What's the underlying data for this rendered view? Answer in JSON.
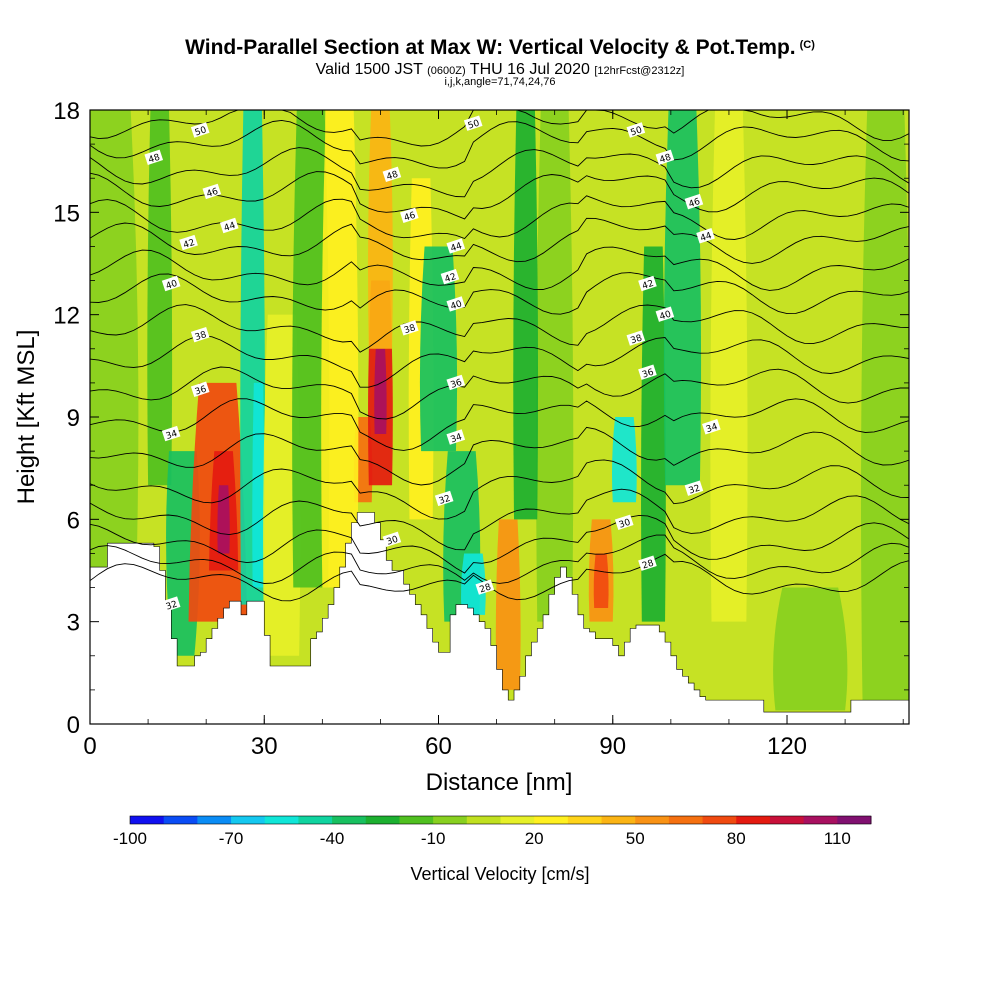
{
  "title": "Wind-Parallel Section at Max W: Vertical Velocity & Pot.Temp.",
  "copyright": "(C)",
  "subtitle_main": "Valid 1500 JST",
  "subtitle_utc": "(0600Z)",
  "subtitle_date": "THU 16 Jul 2020",
  "subtitle_fcst": "[12hrFcst@2312z]",
  "subtitle_idx": "i,j,k,angle=71,74,24,76",
  "chart_data": {
    "type": "heatmap",
    "xlabel": "Distance [nm]",
    "ylabel": "Height [Kft MSL]",
    "xlim": [
      0,
      141
    ],
    "ylim": [
      0,
      18
    ],
    "xticks": [
      "0",
      "30",
      "60",
      "90",
      "120"
    ],
    "yticks": [
      "0",
      "3",
      "6",
      "9",
      "12",
      "15",
      "18"
    ],
    "colorbar": {
      "label": "Vertical Velocity [cm/s]",
      "ticks": [
        "-100",
        "-70",
        "-40",
        "-10",
        "20",
        "50",
        "80",
        "110"
      ],
      "levels": [
        -100,
        -90,
        -80,
        -70,
        -60,
        -50,
        -40,
        -30,
        -20,
        -10,
        0,
        10,
        20,
        30,
        40,
        50,
        60,
        70,
        80,
        90,
        100,
        110,
        120
      ],
      "colors": [
        "#1010f0",
        "#0a4cf5",
        "#0a8cf5",
        "#14c8f0",
        "#10e6d8",
        "#10d4a0",
        "#18c060",
        "#1cb030",
        "#50c020",
        "#88d020",
        "#c0e020",
        "#e6f028",
        "#fff020",
        "#ffd41a",
        "#fbb414",
        "#f99214",
        "#f57010",
        "#f04a10",
        "#e41a10",
        "#c8103a",
        "#a81060",
        "#801070"
      ]
    },
    "contour_field": "Pot.Temp.",
    "contour_labels": [
      {
        "x": 14,
        "y": 3.5,
        "label": "32"
      },
      {
        "x": 14,
        "y": 8.5,
        "label": "34"
      },
      {
        "x": 19,
        "y": 9.8,
        "label": "36"
      },
      {
        "x": 19,
        "y": 11.4,
        "label": "38"
      },
      {
        "x": 14,
        "y": 12.9,
        "label": "40"
      },
      {
        "x": 17,
        "y": 14.1,
        "label": "42"
      },
      {
        "x": 24,
        "y": 14.6,
        "label": "44"
      },
      {
        "x": 21,
        "y": 15.6,
        "label": "46"
      },
      {
        "x": 11,
        "y": 16.6,
        "label": "48"
      },
      {
        "x": 19,
        "y": 17.4,
        "label": "50"
      },
      {
        "x": 52,
        "y": 16.1,
        "label": "48"
      },
      {
        "x": 55,
        "y": 14.9,
        "label": "46"
      },
      {
        "x": 63,
        "y": 14.0,
        "label": "44"
      },
      {
        "x": 62,
        "y": 13.1,
        "label": "42"
      },
      {
        "x": 63,
        "y": 12.3,
        "label": "40"
      },
      {
        "x": 55,
        "y": 11.6,
        "label": "38"
      },
      {
        "x": 63,
        "y": 10.0,
        "label": "36"
      },
      {
        "x": 63,
        "y": 8.4,
        "label": "34"
      },
      {
        "x": 61,
        "y": 6.6,
        "label": "32"
      },
      {
        "x": 52,
        "y": 5.4,
        "label": "30"
      },
      {
        "x": 68,
        "y": 4.0,
        "label": "28"
      },
      {
        "x": 66,
        "y": 17.6,
        "label": "50"
      },
      {
        "x": 94,
        "y": 17.4,
        "label": "50"
      },
      {
        "x": 99,
        "y": 16.6,
        "label": "48"
      },
      {
        "x": 104,
        "y": 15.3,
        "label": "46"
      },
      {
        "x": 106,
        "y": 14.3,
        "label": "44"
      },
      {
        "x": 96,
        "y": 12.9,
        "label": "42"
      },
      {
        "x": 99,
        "y": 12.0,
        "label": "40"
      },
      {
        "x": 94,
        "y": 11.3,
        "label": "38"
      },
      {
        "x": 96,
        "y": 10.3,
        "label": "36"
      },
      {
        "x": 107,
        "y": 8.7,
        "label": "34"
      },
      {
        "x": 104,
        "y": 6.9,
        "label": "32"
      },
      {
        "x": 92,
        "y": 5.9,
        "label": "30"
      },
      {
        "x": 96,
        "y": 4.7,
        "label": "28"
      }
    ],
    "terrain_height": [
      [
        0,
        4.6
      ],
      [
        2,
        4.6
      ],
      [
        3,
        5.3
      ],
      [
        6,
        5.3
      ],
      [
        7,
        5.3
      ],
      [
        8,
        5.3
      ],
      [
        9,
        5.3
      ],
      [
        10,
        5.3
      ],
      [
        11,
        5.2
      ],
      [
        12,
        4.5
      ],
      [
        13,
        3.5
      ],
      [
        14,
        2.5
      ],
      [
        15,
        1.7
      ],
      [
        17,
        1.7
      ],
      [
        18,
        2.0
      ],
      [
        19,
        2.1
      ],
      [
        20,
        2.5
      ],
      [
        21,
        2.8
      ],
      [
        22,
        3.1
      ],
      [
        23,
        3.4
      ],
      [
        24,
        3.6
      ],
      [
        26,
        3.2
      ],
      [
        27,
        3.6
      ],
      [
        29,
        3.6
      ],
      [
        30,
        2.6
      ],
      [
        31,
        1.7
      ],
      [
        37,
        1.7
      ],
      [
        38,
        2.5
      ],
      [
        39,
        2.7
      ],
      [
        40,
        3.1
      ],
      [
        41,
        3.5
      ],
      [
        42,
        4.0
      ],
      [
        43,
        4.6
      ],
      [
        44,
        5.3
      ],
      [
        45,
        5.9
      ],
      [
        46,
        6.2
      ],
      [
        48,
        6.2
      ],
      [
        49,
        5.9
      ],
      [
        50,
        5.4
      ],
      [
        51,
        4.8
      ],
      [
        52,
        4.5
      ],
      [
        53,
        4.5
      ],
      [
        54,
        4.1
      ],
      [
        55,
        3.8
      ],
      [
        56,
        3.5
      ],
      [
        57,
        3.2
      ],
      [
        58,
        2.8
      ],
      [
        59,
        2.4
      ],
      [
        60,
        2.1
      ],
      [
        61,
        2.1
      ],
      [
        62,
        3.2
      ],
      [
        63,
        3.5
      ],
      [
        64,
        3.5
      ],
      [
        65,
        3.4
      ],
      [
        66,
        3.2
      ],
      [
        67,
        3.0
      ],
      [
        68,
        2.8
      ],
      [
        69,
        2.3
      ],
      [
        70,
        1.6
      ],
      [
        71,
        1.0
      ],
      [
        72,
        0.7
      ],
      [
        73,
        1.0
      ],
      [
        74,
        1.4
      ],
      [
        75,
        2.0
      ],
      [
        76,
        2.4
      ],
      [
        77,
        2.8
      ],
      [
        78,
        3.2
      ],
      [
        79,
        3.8
      ],
      [
        80,
        4.3
      ],
      [
        81,
        4.6
      ],
      [
        82,
        4.3
      ],
      [
        83,
        3.8
      ],
      [
        84,
        3.2
      ],
      [
        85,
        2.8
      ],
      [
        86,
        2.7
      ],
      [
        87,
        2.5
      ],
      [
        88,
        2.5
      ],
      [
        89,
        2.5
      ],
      [
        90,
        2.3
      ],
      [
        91,
        2.0
      ],
      [
        92,
        2.4
      ],
      [
        93,
        2.8
      ],
      [
        94,
        2.9
      ],
      [
        98,
        2.7
      ],
      [
        99,
        2.4
      ],
      [
        100,
        2.0
      ],
      [
        101,
        1.6
      ],
      [
        102,
        1.4
      ],
      [
        103,
        1.2
      ],
      [
        104,
        1.0
      ],
      [
        105,
        0.8
      ],
      [
        106,
        0.7
      ],
      [
        115,
        0.7
      ],
      [
        116,
        0.35
      ],
      [
        120,
        0.35
      ],
      [
        121,
        0.35
      ],
      [
        130,
        0.35
      ],
      [
        131,
        0.7
      ],
      [
        141,
        0.7
      ]
    ]
  }
}
